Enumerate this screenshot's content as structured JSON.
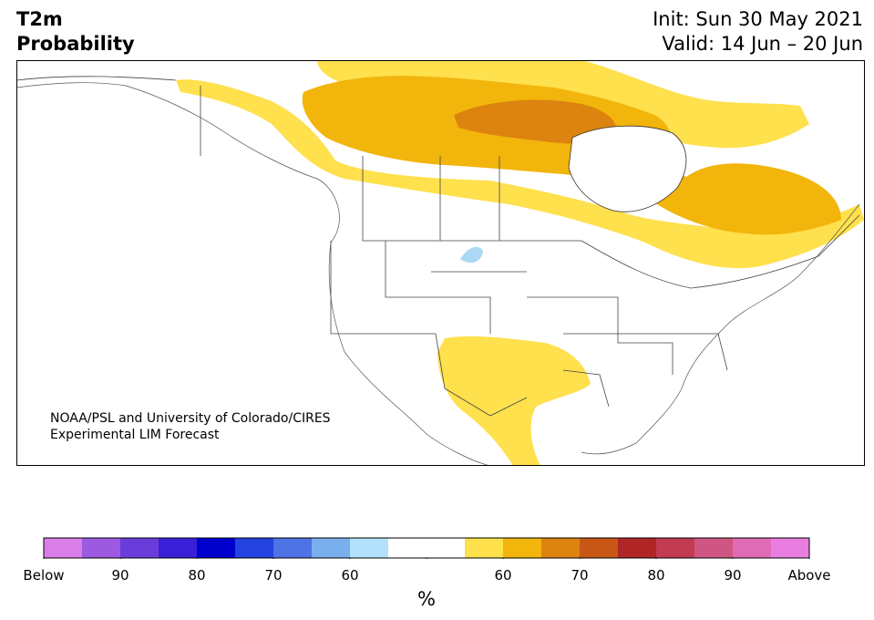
{
  "header": {
    "title_line1": "T2m",
    "title_line2": "Probability",
    "init": "Init: Sun 30 May 2021",
    "valid": "Valid: 14 Jun – 20 Jun"
  },
  "credit": {
    "line1": "NOAA/PSL and University of Colorado/CIRES",
    "line2": "Experimental LIM Forecast"
  },
  "map_regions": {
    "above_55_60": "#ffe04d",
    "above_60_70": "#f2b50c",
    "above_70_80": "#dc840f",
    "lakes": "#aad8f5"
  },
  "colorbar": {
    "colors": [
      "#d97ee8",
      "#9c5ae0",
      "#6a3ddb",
      "#3a1fd8",
      "#0000cc",
      "#2342e0",
      "#4f73e4",
      "#7aafee",
      "#b3e0fb",
      "#ffffff",
      "#ffffff",
      "#ffe04d",
      "#f2b50c",
      "#dc840f",
      "#c85717",
      "#b02626",
      "#c23b50",
      "#cf5683",
      "#df6bb5",
      "#ea7ee0"
    ],
    "tick_labels": [
      "Below",
      "90",
      "80",
      "70",
      "60",
      "",
      "60",
      "70",
      "80",
      "90",
      "Above"
    ],
    "unit": "%"
  }
}
